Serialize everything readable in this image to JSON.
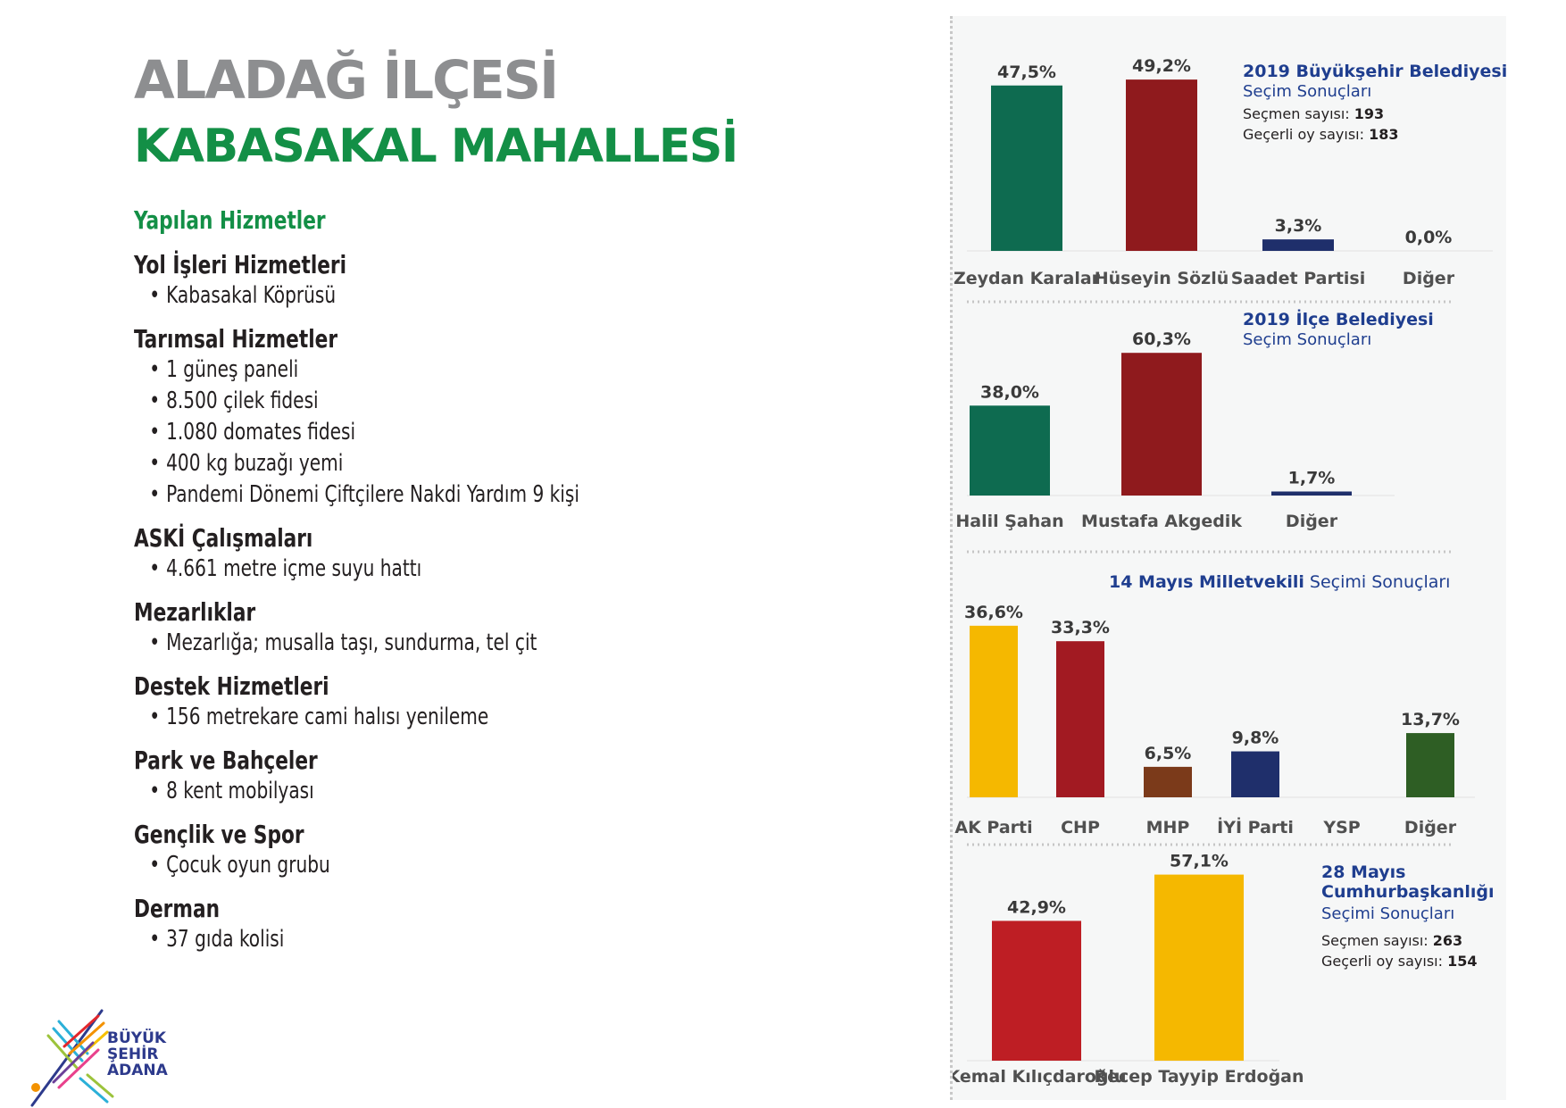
{
  "title": {
    "line1": "ALADAĞ İLÇESİ",
    "line2": "KABASAKAL MAHALLESİ"
  },
  "services": {
    "heading": "Yapılan Hizmetler",
    "groups": [
      {
        "title": "Yol İşleri Hizmetleri",
        "items": [
          "Kabasakal Köprüsü"
        ]
      },
      {
        "title": "Tarımsal Hizmetler",
        "items": [
          "1 güneş paneli",
          "8.500 çilek fidesi",
          "1.080 domates fidesi",
          "400 kg buzağı yemi",
          "Pandemi Dönemi Çiftçilere Nakdi Yardım 9 kişi"
        ]
      },
      {
        "title": "ASKİ Çalışmaları",
        "items": [
          "4.661 metre içme suyu hattı"
        ]
      },
      {
        "title": "Mezarlıklar",
        "items": [
          "Mezarlığa; musalla taşı, sundurma, tel çit"
        ]
      },
      {
        "title": "Destek Hizmetleri",
        "items": [
          "156 metrekare cami halısı yenileme"
        ]
      },
      {
        "title": "Park ve Bahçeler",
        "items": [
          "8 kent mobilyası"
        ]
      },
      {
        "title": "Gençlik ve Spor",
        "items": [
          "Çocuk oyun grubu"
        ]
      },
      {
        "title": "Derman",
        "items": [
          "37 gıda kolisi"
        ]
      }
    ]
  },
  "logo": {
    "line1": "BÜYÜK",
    "line2": "ŞEHİR",
    "line3": "ADANA"
  },
  "colors": {
    "green": "#0e6b50",
    "red": "#8f1a1d",
    "navy": "#1f2f6b",
    "yellow": "#f5b800",
    "chp_red": "#a21a22",
    "brown": "#7b3a1a",
    "dark_green": "#2e5e24",
    "kk_red": "#be1e24",
    "title_blue": "#1f3e8f"
  },
  "chart_data": [
    {
      "type": "bar",
      "title_bold": "2019 Büyükşehir Belediyesi",
      "title_rest": "Seçim Sonuçları",
      "info": [
        {
          "label": "Seçmen sayısı: ",
          "value": "193"
        },
        {
          "label": "Geçerli oy sayısı: ",
          "value": "183"
        }
      ],
      "categories": [
        "Zeydan Karalar",
        "Hüseyin Sözlü",
        "Saadet Partisi",
        "Diğer"
      ],
      "values": [
        47.5,
        49.2,
        3.3,
        0.0
      ],
      "labels": [
        "47,5%",
        "49,2%",
        "3,3%",
        "0,0%"
      ],
      "colors": [
        "#0e6b50",
        "#8f1a1d",
        "#1f2f6b",
        "#1f2f6b"
      ]
    },
    {
      "type": "bar",
      "title_bold": "2019 İlçe Belediyesi",
      "title_rest": "Seçim Sonuçları",
      "info": [],
      "categories": [
        "Halil Şahan",
        "Mustafa Akgedik",
        "Diğer"
      ],
      "values": [
        38.0,
        60.3,
        1.7
      ],
      "labels": [
        "38,0%",
        "60,3%",
        "1,7%"
      ],
      "colors": [
        "#0e6b50",
        "#8f1a1d",
        "#1f2f6b"
      ]
    },
    {
      "type": "bar",
      "title_bold": "14 Mayıs Milletvekili",
      "title_rest": " Seçimi Sonuçları",
      "info": [],
      "categories": [
        "AK Parti",
        "CHP",
        "MHP",
        "İYİ Parti",
        "YSP",
        "Diğer"
      ],
      "values": [
        36.6,
        33.3,
        6.5,
        9.8,
        0,
        13.7
      ],
      "labels": [
        "36,6%",
        "33,3%",
        "6,5%",
        "9,8%",
        "",
        "13,7%"
      ],
      "colors": [
        "#f5b800",
        "#a21a22",
        "#7b3a1a",
        "#1f2f6b",
        "#1f2f6b",
        "#2e5e24"
      ]
    },
    {
      "type": "bar",
      "title_bold": "28 Mayıs Cumhurbaşkanlığı",
      "title_rest": "Seçimi Sonuçları",
      "info": [
        {
          "label": "Seçmen sayısı: ",
          "value": "263"
        },
        {
          "label": "Geçerli oy sayısı: ",
          "value": "154"
        }
      ],
      "categories": [
        "Kemal Kılıçdaroğlu",
        "Recep Tayyip Erdoğan"
      ],
      "values": [
        42.9,
        57.1
      ],
      "labels": [
        "42,9%",
        "57,1%"
      ],
      "colors": [
        "#be1e24",
        "#f5b800"
      ]
    }
  ]
}
